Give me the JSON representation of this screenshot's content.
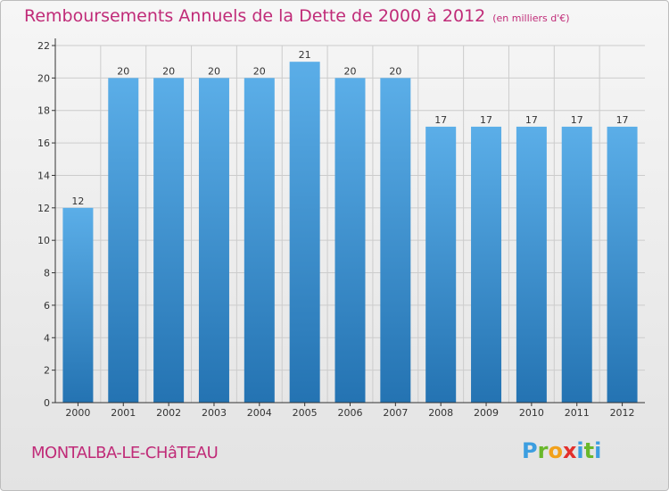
{
  "header": {
    "title": "Remboursements Annuels de la Dette de 2000 à 2012",
    "unit_note": "(en milliers d'€)"
  },
  "footer": {
    "town": "MONTALBA-LE-CHâTEAU",
    "brand": "Proxiti"
  },
  "colors": {
    "title": "#c02b78",
    "bar_top": "#5baee8",
    "bar_bottom": "#2473b2",
    "grid": "#cccccc",
    "axis": "#333333"
  },
  "chart_data": {
    "type": "bar",
    "title": "Remboursements Annuels de la Dette de 2000 à 2012",
    "xlabel": "",
    "ylabel": "",
    "categories": [
      "2000",
      "2001",
      "2002",
      "2003",
      "2004",
      "2005",
      "2006",
      "2007",
      "2008",
      "2009",
      "2010",
      "2011",
      "2012"
    ],
    "values": [
      12,
      20,
      20,
      20,
      20,
      21,
      20,
      20,
      17,
      17,
      17,
      17,
      17
    ],
    "value_labels": [
      "12",
      "20",
      "20",
      "20",
      "20",
      "21",
      "20",
      "20",
      "17",
      "17",
      "17",
      "17",
      "17"
    ],
    "ylim": [
      0,
      22
    ],
    "yticks": [
      "0",
      "2",
      "4",
      "6",
      "8",
      "10",
      "12",
      "14",
      "16",
      "18",
      "20",
      "22"
    ],
    "grid": true,
    "legend": "none"
  }
}
